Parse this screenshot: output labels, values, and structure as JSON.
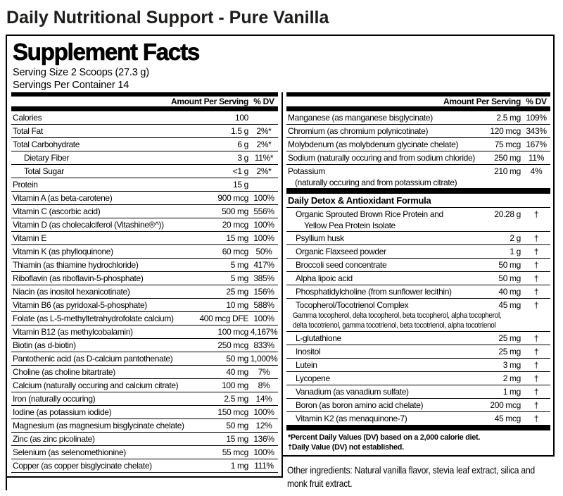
{
  "page_title": "Daily Nutritional Support - Pure Vanilla",
  "colors": {
    "text": "#000000",
    "border": "#000000",
    "background": "#ffffff"
  },
  "sf": {
    "title": "Supplement Facts",
    "serving_size": "Serving Size 2 Scoops (27.3 g)",
    "servings_per_container": "Servings Per Container 14",
    "header": {
      "amount": "Amount Per Serving",
      "dv": "% DV"
    },
    "left_rows": [
      {
        "name": "Calories",
        "amount": "100",
        "dv": ""
      },
      {
        "name": "Total Fat",
        "amount": "1.5 g",
        "dv": "2%*"
      },
      {
        "name": "Total Carbohydrate",
        "amount": "6 g",
        "dv": "2%*"
      },
      {
        "name": "Dietary Fiber",
        "amount": "3 g",
        "dv": "11%*",
        "indent": true
      },
      {
        "name": "Total Sugar",
        "amount": "<1 g",
        "dv": "2%*",
        "indent": true
      },
      {
        "name": "Protein",
        "amount": "15 g",
        "dv": ""
      },
      {
        "name": "Vitamin A (as beta-carotene)",
        "amount": "900 mcg",
        "dv": "100%"
      },
      {
        "name": "Vitamin C (ascorbic acid)",
        "amount": "500 mg",
        "dv": "556%"
      },
      {
        "name": "Vitamin D (as cholecalciferol (Vitashine®^))",
        "amount": "20 mcg",
        "dv": "100%"
      },
      {
        "name": "Vitamin E",
        "amount": "15 mg",
        "dv": "100%"
      },
      {
        "name": "Vitamin K (as phylloquinone)",
        "amount": "60 mcg",
        "dv": "50%"
      },
      {
        "name": "Thiamin (as thiamine hydrochloride)",
        "amount": "5 mg",
        "dv": "417%"
      },
      {
        "name": "Riboflavin (as riboflavin-5-phosphate)",
        "amount": "5 mg",
        "dv": "385%"
      },
      {
        "name": "Niacin (as inositol hexanicotinate)",
        "amount": "25 mg",
        "dv": "156%"
      },
      {
        "name": "Vitamin B6 (as pyridoxal-5-phosphate)",
        "amount": "10 mg",
        "dv": "588%"
      },
      {
        "name": "Folate (as L-5-methyltetrahydrofolate calcium)",
        "amount": "400 mcg DFE",
        "dv": "100%"
      },
      {
        "name": "Vitamin B12 (as methylcobalamin)",
        "amount": "100 mcg",
        "dv": "4,167%"
      },
      {
        "name": "Biotin (as d-biotin)",
        "amount": "250 mcg",
        "dv": "833%"
      },
      {
        "name": "Pantothenic acid (as D-calcium pantothenate)",
        "amount": "50 mg",
        "dv": "1,000%"
      },
      {
        "name": "Choline (as choline bitartrate)",
        "amount": "40 mg",
        "dv": "7%"
      },
      {
        "name": "Calcium (naturally occuring and calcium citrate)",
        "amount": "100 mg",
        "dv": "8%"
      },
      {
        "name": "Iron (naturally occuring)",
        "amount": "2.5 mg",
        "dv": "14%"
      },
      {
        "name": "Iodine (as potassium iodide)",
        "amount": "150 mcg",
        "dv": "100%"
      },
      {
        "name": "Magnesium (as magnesium bisglycinate chelate)",
        "amount": "50 mg",
        "dv": "12%"
      },
      {
        "name": "Zinc (as zinc picolinate)",
        "amount": "15 mg",
        "dv": "136%"
      },
      {
        "name": "Selenium (as selenomethionine)",
        "amount": "55 mcg",
        "dv": "100%"
      },
      {
        "name": "Copper (as copper bisglycinate chelate)",
        "amount": "1 mg",
        "dv": "111%"
      }
    ],
    "minerals": [
      {
        "name": "Manganese (as manganese bisglycinate)",
        "amount": "2.5 mg",
        "dv": "109%"
      },
      {
        "name": "Chromium (as chromium polynicotinate)",
        "amount": "120 mcg",
        "dv": "343%"
      },
      {
        "name": "Molybdenum (as molybdenum glycinate chelate)",
        "amount": "75 mcg",
        "dv": "167%"
      },
      {
        "name": "Sodium (naturally occuring and from sodium chloride)",
        "amount": "250 mg",
        "dv": "11%"
      },
      {
        "name": "Potassium",
        "line2": "(naturally occuring and from potassium citrate)",
        "amount": "210 mg",
        "dv": "4%"
      }
    ],
    "detox": {
      "heading": "Daily Detox & Antioxidant Formula",
      "rows": [
        {
          "name": "Organic Sprouted Brown Rice Protein and",
          "line2": "Yellow Pea Protein Isolate",
          "amount": "20.28 g",
          "dv": "†"
        },
        {
          "name": "Psyllium husk",
          "amount": "2 g",
          "dv": "†"
        },
        {
          "name": "Organic Flaxseed powder",
          "amount": "1 g",
          "dv": "†"
        },
        {
          "name": "Broccoli seed concentrate",
          "amount": "50 mg",
          "dv": "†"
        },
        {
          "name": "Alpha lipoic acid",
          "amount": "50 mg",
          "dv": "†"
        },
        {
          "name": "Phosphatidylcholine (from sunflower lecithin)",
          "amount": "40 mg",
          "dv": "†"
        },
        {
          "name": "Tocopherol/Tocotrienol Complex",
          "amount": "45 mg",
          "dv": "†",
          "sublines": [
            "Gamma tocopherol, delta tocopherol, beta tocopherol, alpha tocopherol,",
            "delta tocotrienol, gamma tocotrienol, beta tocotrienol, alpha tocotrienol"
          ]
        },
        {
          "name": "L-glutathione",
          "amount": "25 mg",
          "dv": "†"
        },
        {
          "name": "Inositol",
          "amount": "25 mg",
          "dv": "†"
        },
        {
          "name": "Lutein",
          "amount": "3 mg",
          "dv": "†"
        },
        {
          "name": "Lycopene",
          "amount": "2 mg",
          "dv": "†"
        },
        {
          "name": "Vanadium (as vanadium sulfate)",
          "amount": "1 mg",
          "dv": "†"
        },
        {
          "name": "Boron (as boron amino acid chelate)",
          "amount": "200 mcg",
          "dv": "†"
        },
        {
          "name": "Vitamin K2 (as menaquinone-7)",
          "amount": "45 mcg",
          "dv": "†"
        }
      ]
    },
    "footnotes": [
      "*Percent Daily Values (DV) based on a 2,000 calorie diet.",
      "†Daily Value (DV) not established."
    ],
    "other_ingredients": "Other ingredients: Natural vanilla flavor, stevia leaf extract, silica and monk fruit extract."
  }
}
